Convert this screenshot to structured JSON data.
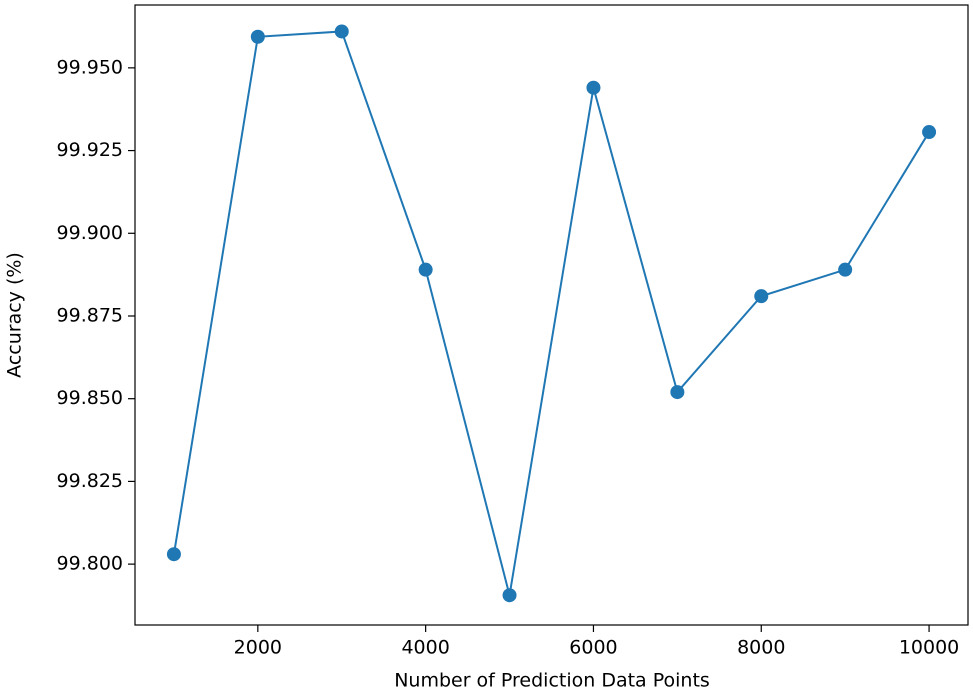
{
  "chart_data": {
    "type": "line",
    "x_label": "Number of Prediction Data Points",
    "y_label": "Accuracy (%)",
    "x": [
      1000,
      2000,
      3000,
      4000,
      5000,
      6000,
      7000,
      8000,
      9000,
      10000
    ],
    "series": [
      {
        "name": "Accuracy",
        "color": "#1f77b4",
        "values": [
          99.803,
          99.9594,
          99.961,
          99.889,
          99.7906,
          99.944,
          99.852,
          99.881,
          99.889,
          99.9306
        ]
      }
    ],
    "xlim": [
      536,
      10464
    ],
    "xticks": [
      2000,
      4000,
      6000,
      8000,
      10000
    ],
    "ylim": [
      99.7816,
      99.969
    ],
    "yticks": [
      {
        "value": 99.8,
        "label": "99.800"
      },
      {
        "value": 99.825,
        "label": "99.825"
      },
      {
        "value": 99.85,
        "label": "99.850"
      },
      {
        "value": 99.875,
        "label": "99.875"
      },
      {
        "value": 99.9,
        "label": "99.900"
      },
      {
        "value": 99.925,
        "label": "99.925"
      },
      {
        "value": 99.95,
        "label": "99.950"
      }
    ],
    "grid": false
  }
}
